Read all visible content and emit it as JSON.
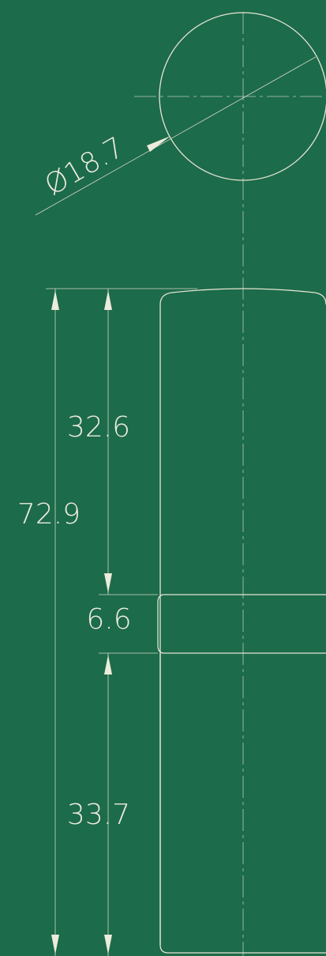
{
  "dimensions": {
    "diameter": "Ø18.7",
    "total_length": "72.9",
    "upper_length": "32.6",
    "band_width": "6.6",
    "lower_length": "33.7"
  }
}
